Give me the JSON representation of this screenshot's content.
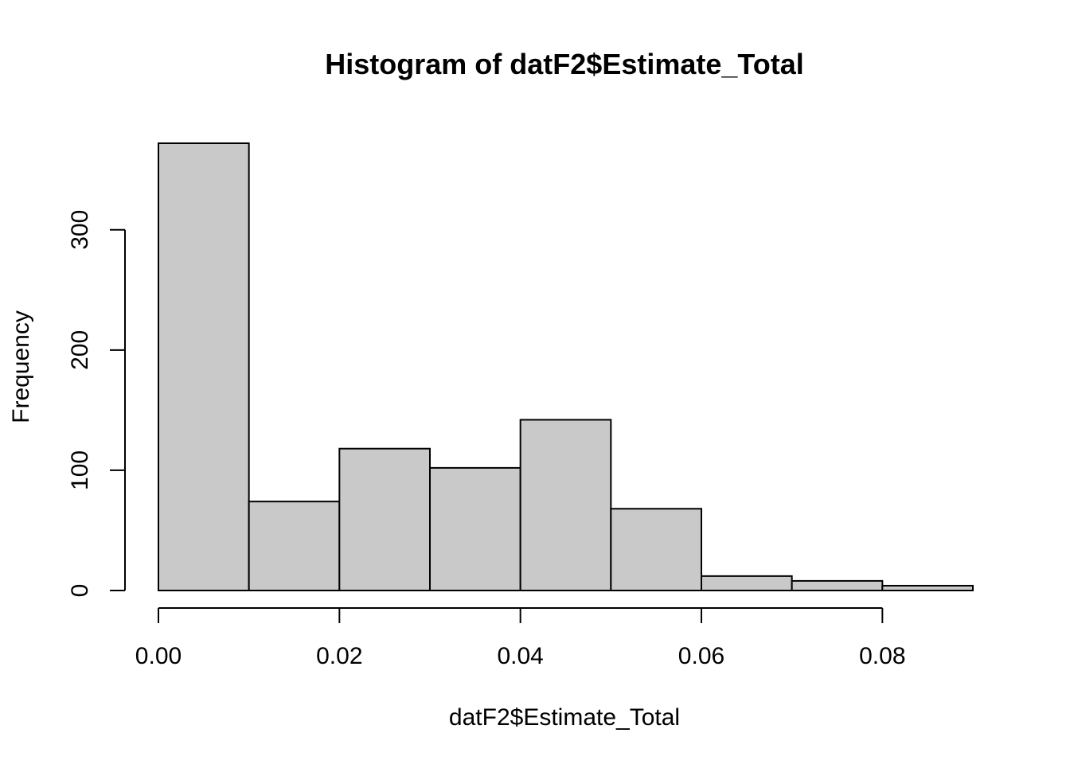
{
  "chart_data": {
    "type": "bar",
    "subtype": "histogram",
    "title": "Histogram of datF2$Estimate_Total",
    "xlabel": "datF2$Estimate_Total",
    "ylabel": "Frequency",
    "bins": [
      {
        "start": 0.0,
        "end": 0.01,
        "count": 372
      },
      {
        "start": 0.01,
        "end": 0.02,
        "count": 74
      },
      {
        "start": 0.02,
        "end": 0.03,
        "count": 118
      },
      {
        "start": 0.03,
        "end": 0.04,
        "count": 102
      },
      {
        "start": 0.04,
        "end": 0.05,
        "count": 142
      },
      {
        "start": 0.05,
        "end": 0.06,
        "count": 68
      },
      {
        "start": 0.06,
        "end": 0.07,
        "count": 12
      },
      {
        "start": 0.07,
        "end": 0.08,
        "count": 8
      },
      {
        "start": 0.08,
        "end": 0.09,
        "count": 4
      }
    ],
    "xticks": [
      0.0,
      0.02,
      0.04,
      0.06,
      0.08
    ],
    "xtick_labels": [
      "0.00",
      "0.02",
      "0.04",
      "0.06",
      "0.08"
    ],
    "yticks": [
      0,
      100,
      200,
      300
    ],
    "ytick_labels": [
      "0",
      "100",
      "200",
      "300"
    ],
    "xlim": [
      0.0,
      0.09
    ],
    "ylim": [
      0,
      372
    ],
    "grid": false,
    "bar_fill": "#c9c9c9",
    "bar_stroke": "#000000"
  }
}
